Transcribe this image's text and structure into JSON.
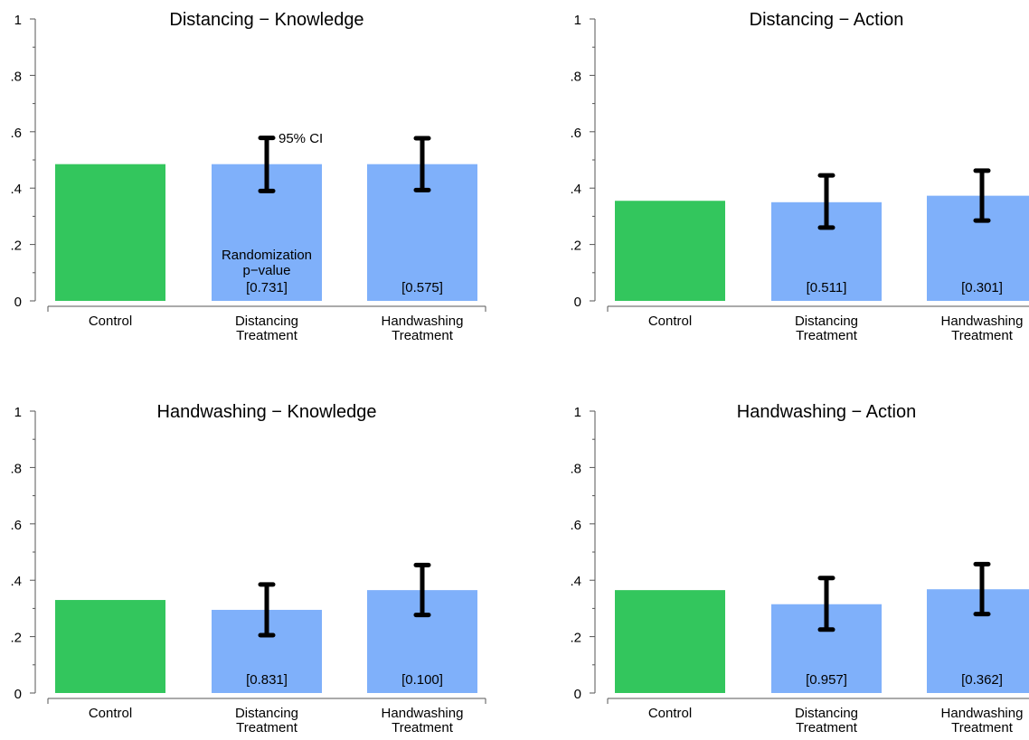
{
  "colors": {
    "control": "#33c65d",
    "treatment": "#7fb0fa",
    "error_bar": "#000000",
    "axis": "#555555"
  },
  "annotations": {
    "ci_label": "95% CI",
    "pvalue_label_line1": "Randomization",
    "pvalue_label_line2": "p−value"
  },
  "chart_data": [
    {
      "type": "bar",
      "title": "Distancing − Knowledge",
      "categories": [
        [
          "Control"
        ],
        [
          "Distancing",
          "Treatment"
        ],
        [
          "Handwashing",
          "Treatment"
        ]
      ],
      "values": [
        0.485,
        0.485,
        0.485
      ],
      "ci": [
        null,
        [
          0.39,
          0.578
        ],
        [
          0.393,
          0.577
        ]
      ],
      "pvalues": [
        "",
        "[0.731]",
        "[0.575]"
      ],
      "ylim": [
        0,
        1
      ],
      "yticks": [
        0,
        0.2,
        0.4,
        0.6,
        0.8,
        1
      ],
      "ytick_labels": [
        "0",
        ".2",
        ".4",
        ".6",
        ".8",
        "1"
      ],
      "xlabel": "",
      "ylabel": ""
    },
    {
      "type": "bar",
      "title": "Distancing − Action",
      "categories": [
        [
          "Control"
        ],
        [
          "Distancing",
          "Treatment"
        ],
        [
          "Handwashing",
          "Treatment"
        ]
      ],
      "values": [
        0.355,
        0.35,
        0.373
      ],
      "ci": [
        null,
        [
          0.26,
          0.445
        ],
        [
          0.285,
          0.462
        ]
      ],
      "pvalues": [
        "",
        "[0.511]",
        "[0.301]"
      ],
      "ylim": [
        0,
        1
      ],
      "yticks": [
        0,
        0.2,
        0.4,
        0.6,
        0.8,
        1
      ],
      "ytick_labels": [
        "0",
        ".2",
        ".4",
        ".6",
        ".8",
        "1"
      ],
      "xlabel": "",
      "ylabel": ""
    },
    {
      "type": "bar",
      "title": "Handwashing − Knowledge",
      "categories": [
        [
          "Control"
        ],
        [
          "Distancing",
          "Treatment"
        ],
        [
          "Handwashing",
          "Treatment"
        ]
      ],
      "values": [
        0.33,
        0.295,
        0.365
      ],
      "ci": [
        null,
        [
          0.205,
          0.385
        ],
        [
          0.277,
          0.454
        ]
      ],
      "pvalues": [
        "",
        "[0.831]",
        "[0.100]"
      ],
      "ylim": [
        0,
        1
      ],
      "yticks": [
        0,
        0.2,
        0.4,
        0.6,
        0.8,
        1
      ],
      "ytick_labels": [
        "0",
        ".2",
        ".4",
        ".6",
        ".8",
        "1"
      ],
      "xlabel": "",
      "ylabel": ""
    },
    {
      "type": "bar",
      "title": "Handwashing − Action",
      "categories": [
        [
          "Control"
        ],
        [
          "Distancing",
          "Treatment"
        ],
        [
          "Handwashing",
          "Treatment"
        ]
      ],
      "values": [
        0.365,
        0.315,
        0.368
      ],
      "ci": [
        null,
        [
          0.225,
          0.408
        ],
        [
          0.28,
          0.457
        ]
      ],
      "pvalues": [
        "",
        "[0.957]",
        "[0.362]"
      ],
      "ylim": [
        0,
        1
      ],
      "yticks": [
        0,
        0.2,
        0.4,
        0.6,
        0.8,
        1
      ],
      "ytick_labels": [
        "0",
        ".2",
        ".4",
        ".6",
        ".8",
        "1"
      ],
      "xlabel": "",
      "ylabel": ""
    }
  ]
}
